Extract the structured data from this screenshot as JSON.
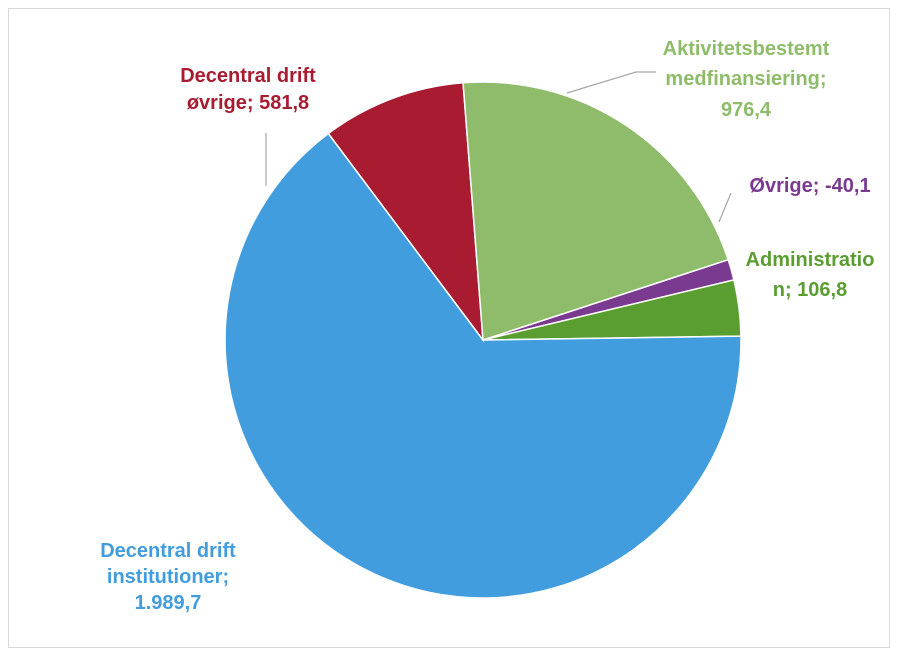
{
  "chart_data": {
    "type": "pie",
    "title": "",
    "slices": [
      {
        "name": "Decentral drift institutioner",
        "label_lines": [
          "Decentral drift",
          "institutioner;",
          "1.989,7"
        ],
        "value": 1989.7,
        "color": "#419ddd"
      },
      {
        "name": "Decentral drift øvrige",
        "label_lines": [
          "Decentral drift",
          "øvrige; 581,8"
        ],
        "value": 581.8,
        "color": "#a81b30"
      },
      {
        "name": "Aktivitetsbestemt medfinansiering",
        "label_lines": [
          "Aktivitetsbestemt",
          "medfinansiering;",
          "976,4"
        ],
        "value": 976.4,
        "color": "#8fbc6a"
      },
      {
        "name": "Øvrige",
        "label_lines": [
          "Øvrige; -40,1"
        ],
        "value": -40.1,
        "color": "#7a3a8f"
      },
      {
        "name": "Administration",
        "label_lines": [
          "Administratio",
          "n; 106,8"
        ],
        "value": 106.8,
        "color": "#5a9e32"
      }
    ],
    "legend": "none"
  }
}
